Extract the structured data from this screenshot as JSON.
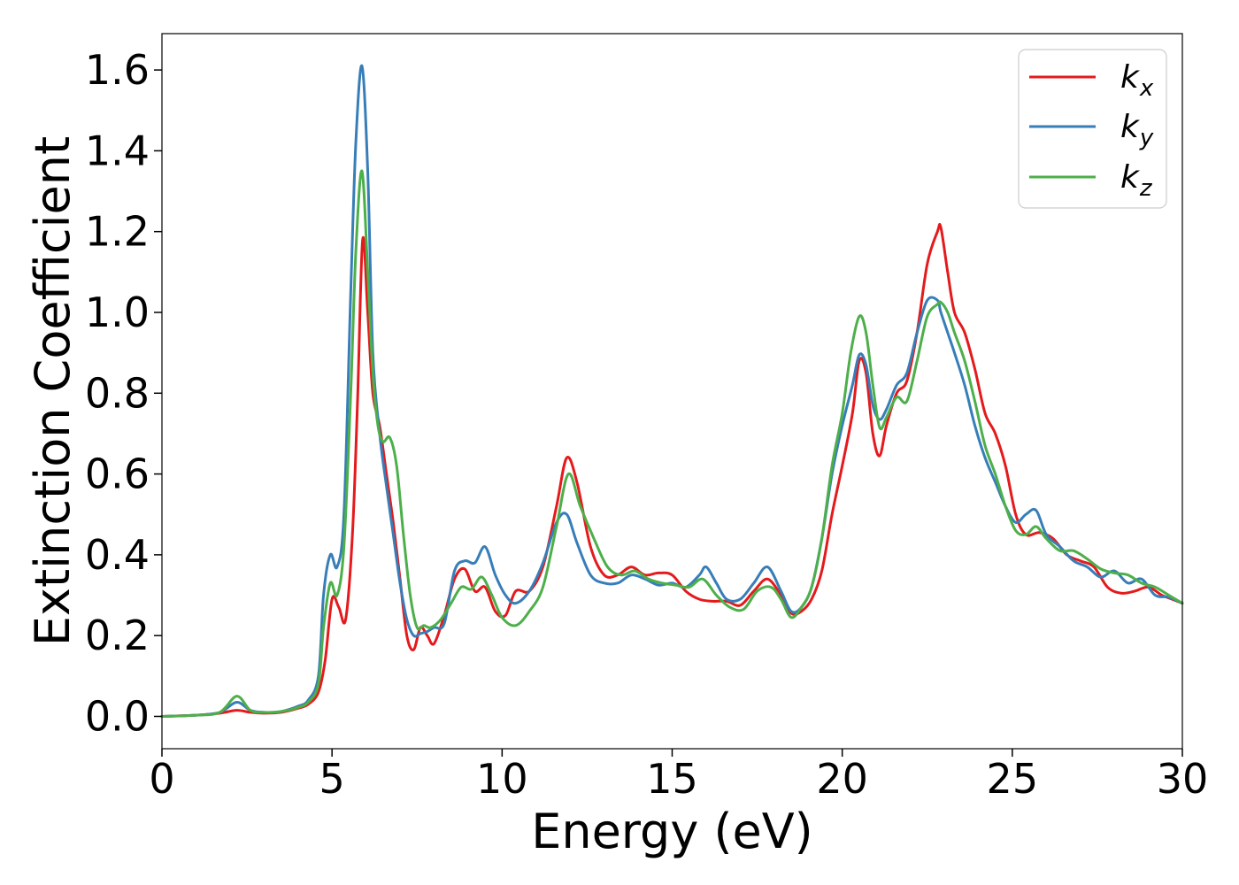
{
  "chart_data": {
    "type": "line",
    "title": "",
    "xlabel": "Energy (eV)",
    "ylabel": "Extinction Coefficient",
    "xlim": [
      0,
      30
    ],
    "ylim": [
      -0.08,
      1.69
    ],
    "x_ticks": [
      0,
      5,
      10,
      15,
      20,
      25,
      30
    ],
    "x_tick_labels": [
      "0",
      "5",
      "10",
      "15",
      "20",
      "25",
      "30"
    ],
    "y_ticks": [
      0.0,
      0.2,
      0.4,
      0.6,
      0.8,
      1.0,
      1.2,
      1.4,
      1.6
    ],
    "y_tick_labels": [
      "0.0",
      "0.2",
      "0.4",
      "0.6",
      "0.8",
      "1.0",
      "1.2",
      "1.4",
      "1.6"
    ],
    "grid": false,
    "legend_position": "top-right",
    "colors": {
      "kx": "#e41a1c",
      "ky": "#377eb8",
      "kz": "#4daf4a"
    },
    "series": [
      {
        "key": "kx",
        "name": "k",
        "subscript": "x",
        "color": "#e41a1c",
        "x": [
          0,
          1,
          1.7,
          2.2,
          2.6,
          3,
          3.5,
          4,
          4.3,
          4.6,
          4.8,
          5.0,
          5.2,
          5.4,
          5.6,
          5.75,
          5.9,
          6.05,
          6.2,
          6.4,
          6.6,
          6.8,
          7.0,
          7.2,
          7.4,
          7.6,
          7.8,
          8.0,
          8.3,
          8.6,
          8.9,
          9.2,
          9.5,
          9.8,
          10.1,
          10.4,
          10.8,
          11.2,
          11.6,
          11.9,
          12.2,
          12.6,
          13.0,
          13.4,
          13.8,
          14.2,
          14.6,
          15.0,
          15.4,
          15.8,
          16.2,
          16.6,
          17.0,
          17.4,
          17.8,
          18.2,
          18.5,
          18.8,
          19.1,
          19.4,
          19.7,
          20.0,
          20.3,
          20.5,
          20.7,
          20.9,
          21.1,
          21.3,
          21.6,
          21.9,
          22.2,
          22.5,
          22.8,
          22.9,
          23.1,
          23.3,
          23.6,
          23.9,
          24.2,
          24.5,
          24.8,
          25.1,
          25.4,
          25.8,
          26.2,
          26.6,
          27.0,
          27.4,
          27.8,
          28.2,
          28.6,
          29.0,
          29.4,
          29.7,
          30.0
        ],
        "values": [
          0.0,
          0.003,
          0.008,
          0.015,
          0.01,
          0.008,
          0.01,
          0.02,
          0.03,
          0.06,
          0.14,
          0.29,
          0.27,
          0.24,
          0.45,
          0.78,
          1.18,
          1.0,
          0.8,
          0.72,
          0.6,
          0.48,
          0.34,
          0.2,
          0.165,
          0.22,
          0.2,
          0.18,
          0.25,
          0.34,
          0.365,
          0.31,
          0.32,
          0.26,
          0.25,
          0.31,
          0.31,
          0.37,
          0.52,
          0.64,
          0.58,
          0.42,
          0.35,
          0.35,
          0.37,
          0.35,
          0.355,
          0.35,
          0.31,
          0.29,
          0.285,
          0.285,
          0.275,
          0.31,
          0.34,
          0.3,
          0.255,
          0.26,
          0.29,
          0.36,
          0.5,
          0.62,
          0.75,
          0.88,
          0.85,
          0.7,
          0.645,
          0.72,
          0.8,
          0.83,
          0.95,
          1.12,
          1.2,
          1.21,
          1.1,
          1.0,
          0.95,
          0.86,
          0.75,
          0.7,
          0.62,
          0.5,
          0.45,
          0.455,
          0.44,
          0.4,
          0.385,
          0.37,
          0.32,
          0.305,
          0.31,
          0.32,
          0.3,
          0.29,
          0.28
        ]
      },
      {
        "key": "ky",
        "name": "k",
        "subscript": "y",
        "color": "#377eb8",
        "x": [
          0,
          1,
          1.7,
          2.2,
          2.6,
          3,
          3.5,
          4,
          4.3,
          4.6,
          4.75,
          4.95,
          5.15,
          5.35,
          5.55,
          5.7,
          5.88,
          6.05,
          6.2,
          6.4,
          6.6,
          6.8,
          7.0,
          7.2,
          7.4,
          7.6,
          7.8,
          8.0,
          8.3,
          8.6,
          8.9,
          9.2,
          9.5,
          9.8,
          10.1,
          10.4,
          10.8,
          11.2,
          11.6,
          11.9,
          12.2,
          12.6,
          13.0,
          13.4,
          13.8,
          14.2,
          14.6,
          15.0,
          15.4,
          15.8,
          16.0,
          16.3,
          16.6,
          17.0,
          17.4,
          17.8,
          18.2,
          18.5,
          18.8,
          19.1,
          19.4,
          19.7,
          20.0,
          20.3,
          20.5,
          20.7,
          20.9,
          21.1,
          21.3,
          21.6,
          21.9,
          22.2,
          22.5,
          22.8,
          22.9,
          23.1,
          23.3,
          23.6,
          23.9,
          24.2,
          24.5,
          24.8,
          25.1,
          25.4,
          25.7,
          26.0,
          26.4,
          26.8,
          27.2,
          27.6,
          28.0,
          28.4,
          28.8,
          29.2,
          29.6,
          30.0
        ],
        "values": [
          0.0,
          0.003,
          0.01,
          0.035,
          0.015,
          0.01,
          0.012,
          0.025,
          0.04,
          0.1,
          0.3,
          0.4,
          0.37,
          0.5,
          1.05,
          1.42,
          1.61,
          1.35,
          0.9,
          0.7,
          0.57,
          0.45,
          0.33,
          0.24,
          0.2,
          0.205,
          0.21,
          0.22,
          0.23,
          0.36,
          0.385,
          0.38,
          0.42,
          0.35,
          0.3,
          0.28,
          0.31,
          0.38,
          0.48,
          0.5,
          0.43,
          0.35,
          0.33,
          0.33,
          0.35,
          0.34,
          0.325,
          0.33,
          0.32,
          0.35,
          0.37,
          0.33,
          0.29,
          0.29,
          0.33,
          0.37,
          0.31,
          0.26,
          0.27,
          0.32,
          0.44,
          0.6,
          0.72,
          0.82,
          0.895,
          0.87,
          0.77,
          0.735,
          0.76,
          0.82,
          0.85,
          0.95,
          1.03,
          1.03,
          1.0,
          0.95,
          0.9,
          0.82,
          0.72,
          0.64,
          0.58,
          0.52,
          0.48,
          0.5,
          0.51,
          0.45,
          0.42,
          0.385,
          0.37,
          0.345,
          0.36,
          0.33,
          0.34,
          0.3,
          0.295,
          0.28
        ]
      },
      {
        "key": "kz",
        "name": "k",
        "subscript": "z",
        "color": "#4daf4a",
        "x": [
          0,
          1,
          1.7,
          2.2,
          2.6,
          3,
          3.5,
          4,
          4.3,
          4.6,
          4.75,
          4.95,
          5.15,
          5.35,
          5.55,
          5.7,
          5.88,
          6.05,
          6.2,
          6.35,
          6.5,
          6.7,
          6.9,
          7.1,
          7.3,
          7.5,
          7.7,
          7.9,
          8.2,
          8.5,
          8.8,
          9.1,
          9.4,
          9.7,
          10.0,
          10.4,
          10.8,
          11.2,
          11.6,
          11.95,
          12.3,
          12.7,
          13.1,
          13.5,
          13.9,
          14.3,
          14.7,
          15.1,
          15.5,
          15.9,
          16.3,
          16.7,
          17.1,
          17.5,
          17.9,
          18.2,
          18.5,
          18.8,
          19.1,
          19.4,
          19.7,
          20.0,
          20.25,
          20.5,
          20.7,
          20.9,
          21.1,
          21.3,
          21.6,
          21.9,
          22.2,
          22.5,
          22.8,
          22.9,
          23.1,
          23.3,
          23.6,
          23.9,
          24.2,
          24.5,
          24.8,
          25.1,
          25.4,
          25.7,
          26.0,
          26.4,
          26.8,
          27.2,
          27.6,
          28.0,
          28.4,
          28.8,
          29.2,
          29.6,
          30.0
        ],
        "values": [
          0.0,
          0.003,
          0.01,
          0.05,
          0.015,
          0.01,
          0.012,
          0.022,
          0.035,
          0.08,
          0.22,
          0.33,
          0.3,
          0.42,
          0.8,
          1.15,
          1.35,
          1.1,
          0.85,
          0.72,
          0.68,
          0.69,
          0.62,
          0.45,
          0.3,
          0.22,
          0.225,
          0.22,
          0.24,
          0.28,
          0.32,
          0.315,
          0.345,
          0.3,
          0.245,
          0.225,
          0.26,
          0.32,
          0.47,
          0.6,
          0.52,
          0.44,
          0.37,
          0.35,
          0.36,
          0.34,
          0.33,
          0.325,
          0.32,
          0.34,
          0.3,
          0.27,
          0.265,
          0.31,
          0.32,
          0.29,
          0.245,
          0.27,
          0.32,
          0.44,
          0.62,
          0.75,
          0.9,
          0.99,
          0.95,
          0.82,
          0.715,
          0.74,
          0.79,
          0.78,
          0.88,
          0.99,
          1.02,
          1.025,
          1.0,
          0.95,
          0.88,
          0.78,
          0.67,
          0.6,
          0.52,
          0.46,
          0.45,
          0.47,
          0.44,
          0.41,
          0.41,
          0.39,
          0.365,
          0.355,
          0.35,
          0.33,
          0.32,
          0.3,
          0.28
        ]
      }
    ]
  }
}
